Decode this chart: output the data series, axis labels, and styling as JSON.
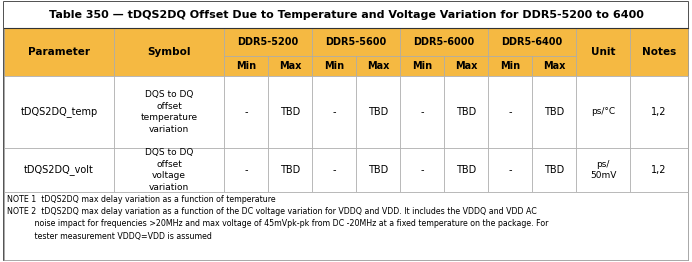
{
  "title": "Table 350 — tDQS2DQ Offset Due to Temperature and Voltage Variation for DDR5-5200 to 6400",
  "header_bg": "#F5B942",
  "body_bg": "#FFFFFF",
  "border_color": "#AAAAAA",
  "col_groups": [
    "DDR5-5200",
    "DDR5-5600",
    "DDR5-6000",
    "DDR5-6400"
  ],
  "rows": [
    {
      "param": "tDQS2DQ_temp",
      "symbol": "DQS to DQ\noffset\ntemperature\nvariation",
      "values": [
        "-",
        "TBD",
        "-",
        "TBD",
        "-",
        "TBD",
        "-",
        "TBD"
      ],
      "unit": "ps/°C",
      "notes": "1,2"
    },
    {
      "param": "tDQS2DQ_volt",
      "symbol": "DQS to DQ\noffset\nvoltage\nvariation",
      "values": [
        "-",
        "TBD",
        "-",
        "TBD",
        "-",
        "TBD",
        "-",
        "TBD"
      ],
      "unit": "ps/\n50mV",
      "notes": "1,2"
    }
  ],
  "note1": "NOTE 1  tDQS2DQ max delay variation as a function of temperature",
  "note2_line1": "NOTE 2  tDQS2DQ max delay variation as a function of the DC voltage variation for VDDQ and VDD. It includes the VDDQ and VDD AC",
  "note2_line2": "           noise impact for frequencies >20MHz and max voltage of 45mVpk-pk from DC -20MHz at a fixed temperature on the package. For",
  "note2_line3": "           tester measurement VDDQ=VDD is assumed"
}
